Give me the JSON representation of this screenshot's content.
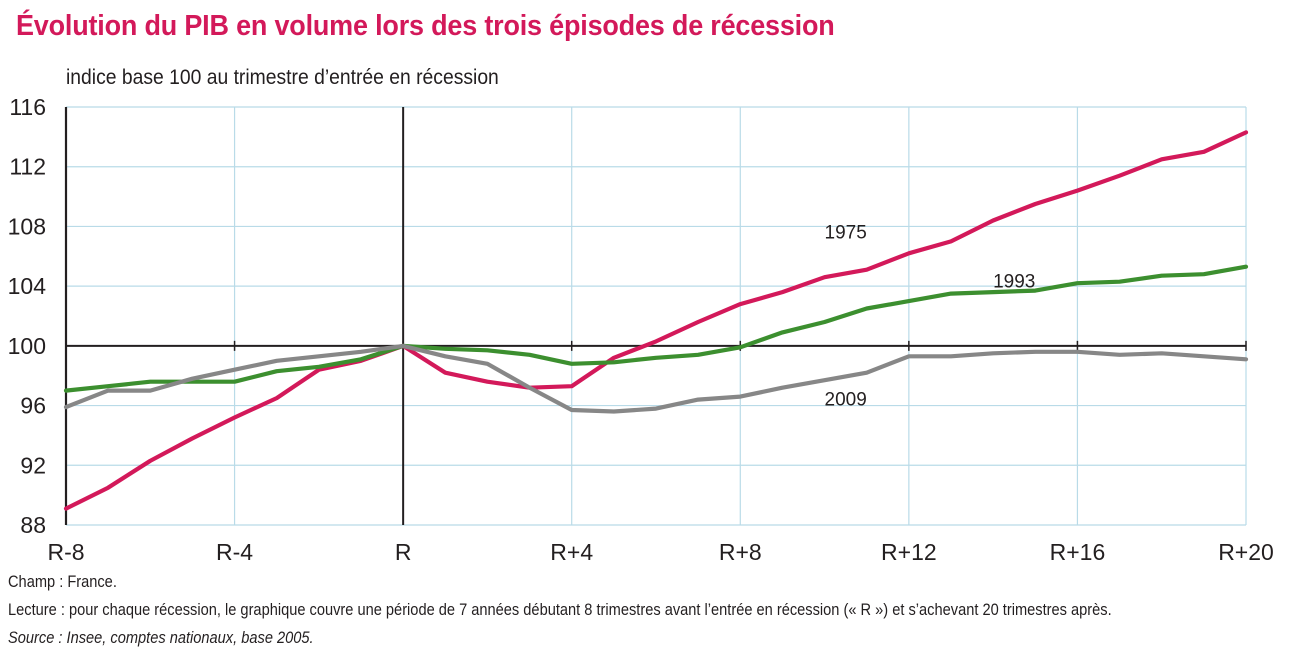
{
  "header": {
    "title": "Évolution du PIB en volume lors des trois épisodes de récession",
    "subtitle": "indice base 100 au trimestre d’entrée en récession"
  },
  "footer": {
    "champ": "Champ : France.",
    "lecture": "Lecture : pour chaque récession, le graphique couvre une période de 7 années débutant 8 trimestres avant l’entrée en récession (« R ») et s’achevant 20 trimestres après.",
    "source": "Source : Insee, comptes nationaux, base 2005."
  },
  "colors": {
    "title": "#d3195a",
    "grid": "#b9dbe8",
    "axis": "#231f20"
  },
  "chart_data": {
    "type": "line",
    "title": "Évolution du PIB en volume lors des trois épisodes de récession",
    "ylabel": "indice base 100 au trimestre d’entrée en récession",
    "xlabel": "",
    "x": [
      -8,
      -7,
      -6,
      -5,
      -4,
      -3,
      -2,
      -1,
      0,
      1,
      2,
      3,
      4,
      5,
      6,
      7,
      8,
      9,
      10,
      11,
      12,
      13,
      14,
      15,
      16,
      17,
      18,
      19,
      20
    ],
    "xlim": [
      -8,
      20
    ],
    "ylim": [
      88,
      116
    ],
    "xticks": [
      -8,
      -4,
      0,
      4,
      8,
      12,
      16,
      20
    ],
    "xtick_labels": [
      "R-8",
      "R-4",
      "R",
      "R+4",
      "R+8",
      "R+12",
      "R+16",
      "R+20"
    ],
    "yticks": [
      88,
      92,
      96,
      100,
      104,
      108,
      112,
      116
    ],
    "ytick_labels": [
      "88",
      "92",
      "96",
      "100",
      "104",
      "108",
      "112",
      "116"
    ],
    "grid": true,
    "reference_lines": {
      "x": 0,
      "y": 100
    },
    "legend": "inline labels",
    "series": [
      {
        "name": "1975",
        "color": "#d3195a",
        "values": [
          89.1,
          90.5,
          92.3,
          93.8,
          95.2,
          96.5,
          98.4,
          99.0,
          100,
          98.2,
          97.6,
          97.2,
          97.3,
          99.2,
          100.3,
          101.6,
          102.8,
          103.6,
          104.6,
          105.1,
          106.2,
          107.0,
          108.4,
          109.5,
          110.4,
          111.4,
          112.5,
          113.0,
          114.3
        ],
        "label_at": {
          "x": 10.5,
          "y": 107.2
        }
      },
      {
        "name": "1993",
        "color": "#3c8f2f",
        "values": [
          97.0,
          97.3,
          97.6,
          97.6,
          97.6,
          98.3,
          98.6,
          99.1,
          100,
          99.8,
          99.7,
          99.4,
          98.8,
          98.9,
          99.2,
          99.4,
          99.9,
          100.9,
          101.6,
          102.5,
          103.0,
          103.5,
          103.6,
          103.7,
          104.2,
          104.3,
          104.7,
          104.8,
          105.3
        ],
        "label_at": {
          "x": 14.5,
          "y": 103.9
        }
      },
      {
        "name": "2009",
        "color": "#878787",
        "values": [
          95.9,
          97.0,
          97.0,
          97.8,
          98.4,
          99.0,
          99.3,
          99.6,
          100,
          99.3,
          98.8,
          97.2,
          95.7,
          95.6,
          95.8,
          96.4,
          96.6,
          97.2,
          97.7,
          98.2,
          99.3,
          99.3,
          99.5,
          99.6,
          99.6,
          99.4,
          99.5,
          99.3,
          99.1
        ],
        "label_at": {
          "x": 10.5,
          "y": 96.0
        }
      }
    ]
  }
}
